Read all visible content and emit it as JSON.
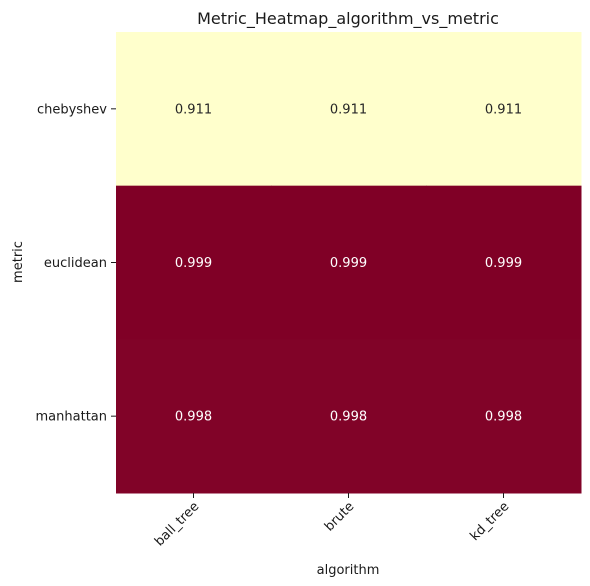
{
  "chart_data": {
    "type": "heatmap",
    "title": "Metric_Heatmap_algorithm_vs_metric",
    "xlabel": "algorithm",
    "ylabel": "metric",
    "x_categories": [
      "ball_tree",
      "brute",
      "kd_tree"
    ],
    "y_categories": [
      "chebyshev",
      "euclidean",
      "manhattan"
    ],
    "values": [
      [
        0.911,
        0.911,
        0.911
      ],
      [
        0.999,
        0.999,
        0.999
      ],
      [
        0.998,
        0.998,
        0.998
      ]
    ],
    "value_labels": [
      [
        "0.911",
        "0.911",
        "0.911"
      ],
      [
        "0.999",
        "0.999",
        "0.999"
      ],
      [
        "0.998",
        "0.998",
        "0.998"
      ]
    ],
    "colormap": "YlOrRd",
    "colors": {
      "low": "#ffffcc",
      "high": "#800026",
      "text_on_light": "#262626",
      "text_on_dark": "#ffffff"
    },
    "colorbar": false,
    "grid": false
  }
}
